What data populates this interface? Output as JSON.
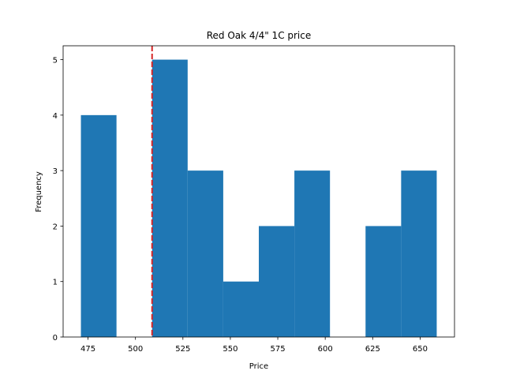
{
  "chart_data": {
    "type": "histogram",
    "title": "Red Oak 4/4\" 1C price",
    "x_label": "Price",
    "y_label": "Frequency",
    "bins": [
      471.25,
      490,
      508.75,
      527.5,
      546.25,
      565,
      583.75,
      602.5,
      621.25,
      640,
      658.75
    ],
    "values": [
      4,
      0,
      5,
      3,
      1,
      2,
      3,
      0,
      2,
      3
    ],
    "color": "#1f77b4",
    "vline": {
      "value": 508.75,
      "color": "#d62728"
    },
    "xlim": [
      461.875,
      668.125
    ],
    "xticks": [
      475,
      500,
      525,
      550,
      575,
      600,
      625,
      650
    ],
    "ylim": [
      0,
      5.25
    ],
    "yticks": [
      0,
      1,
      2,
      3,
      4,
      5
    ]
  }
}
